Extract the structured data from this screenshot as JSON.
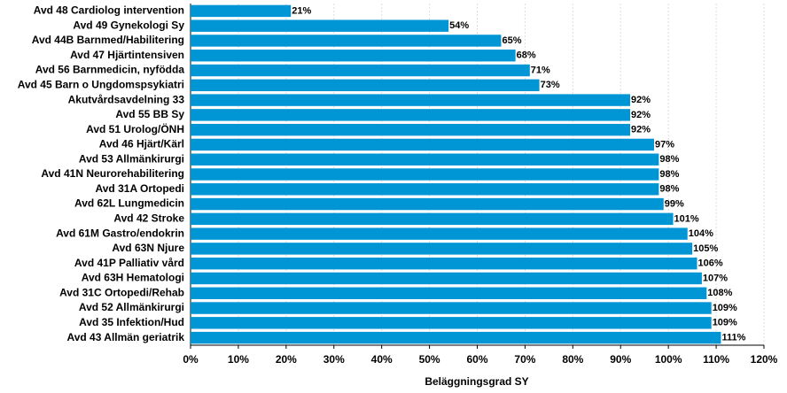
{
  "chart_data": {
    "type": "bar",
    "orientation": "horizontal",
    "x_label": "Beläggningsgrad SY",
    "categories": [
      "Avd 48 Cardiolog intervention",
      "Avd 49 Gynekologi Sy",
      "Avd 44B Barnmed/Habilitering",
      "Avd 47 Hjärtintensiven",
      "Avd 56 Barnmedicin, nyfödda",
      "Avd 45 Barn o Ungdomspsykiatri",
      "Akutvårdsavdelning 33",
      "Avd 55 BB Sy",
      "Avd 51 Urolog/ÖNH",
      "Avd 46 Hjärt/Kärl",
      "Avd 53 Allmänkirurgi",
      "Avd 41N Neurorehabilitering",
      "Avd 31A Ortopedi",
      "Avd 62L Lungmedicin",
      "Avd 42 Stroke",
      "Avd 61M Gastro/endokrin",
      "Avd 63N Njure",
      "Avd 41P Palliativ vård",
      "Avd 63H Hematologi",
      "Avd 31C Ortopedi/Rehab",
      "Avd 52 Allmänkirurgi",
      "Avd 35 Infektion/Hud",
      "Avd 43 Allmän geriatrik"
    ],
    "values": [
      21,
      54,
      65,
      68,
      71,
      73,
      92,
      92,
      92,
      97,
      98,
      98,
      98,
      99,
      101,
      104,
      105,
      106,
      107,
      108,
      109,
      109,
      111
    ],
    "value_labels": [
      "21%",
      "54%",
      "65%",
      "68%",
      "71%",
      "73%",
      "92%",
      "92%",
      "92%",
      "97%",
      "98%",
      "98%",
      "98%",
      "99%",
      "101%",
      "104%",
      "105%",
      "106%",
      "107%",
      "108%",
      "109%",
      "109%",
      "111%"
    ],
    "color": "#0096d6",
    "xlim": [
      0,
      120
    ],
    "xticks": [
      {
        "value": 0,
        "label": "0%"
      },
      {
        "value": 10,
        "label": "10%"
      },
      {
        "value": 20,
        "label": "20%"
      },
      {
        "value": 30,
        "label": "30%"
      },
      {
        "value": 40,
        "label": "40%"
      },
      {
        "value": 50,
        "label": "50%"
      },
      {
        "value": 60,
        "label": "60%"
      },
      {
        "value": 70,
        "label": "70%"
      },
      {
        "value": 80,
        "label": "80%"
      },
      {
        "value": 90,
        "label": "90%"
      },
      {
        "value": 100,
        "label": "100%"
      },
      {
        "value": 110,
        "label": "110%"
      },
      {
        "value": 120,
        "label": "120%"
      }
    ],
    "grid": true
  }
}
